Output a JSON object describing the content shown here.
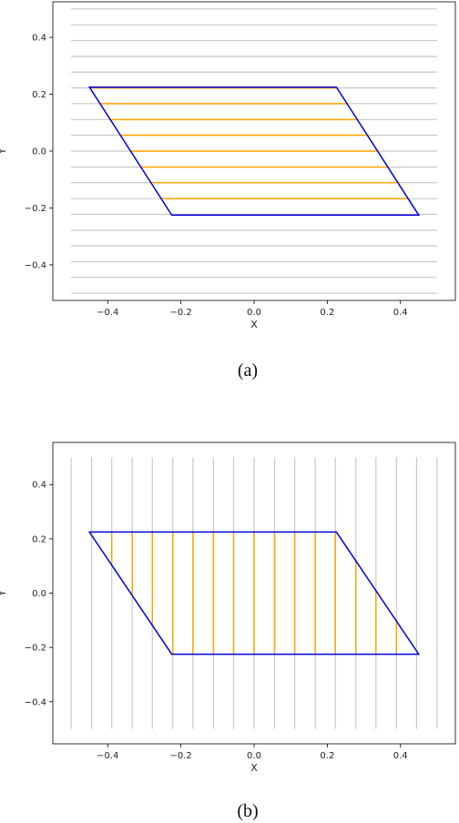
{
  "chart_data": [
    {
      "type": "line",
      "panel": "a",
      "caption": "(a)",
      "xlabel": "X",
      "ylabel": "Y",
      "xlim": [
        -0.55,
        0.55
      ],
      "ylim": [
        -0.525,
        0.525
      ],
      "xticks": [
        -0.4,
        -0.2,
        0.0,
        0.2,
        0.4
      ],
      "yticks": [
        -0.4,
        -0.2,
        0.0,
        0.2,
        0.4
      ],
      "xtick_labels": [
        "−0.4",
        "−0.2",
        "0.0",
        "0.2",
        "0.4"
      ],
      "ytick_labels": [
        "−0.4",
        "−0.2",
        "0.0",
        "0.2",
        "0.4"
      ],
      "grid": false,
      "colors": {
        "background_lines": "#c8c8c8",
        "clipped_lines": "#ffa500",
        "shape": "#0000dd"
      },
      "series": [
        {
          "role": "background_lines",
          "orientation": "horizontal",
          "span": [
            -0.5,
            0.5
          ],
          "positions": [
            -0.5,
            -0.444,
            -0.389,
            -0.333,
            -0.278,
            -0.222,
            -0.167,
            -0.111,
            -0.056,
            0.0,
            0.056,
            0.111,
            0.167,
            0.222,
            0.278,
            0.333,
            0.389,
            0.444,
            0.5
          ]
        },
        {
          "role": "clipped_lines",
          "orientation": "horizontal",
          "positions": [
            -0.167,
            -0.111,
            -0.056,
            0.0,
            0.056,
            0.111,
            0.167,
            0.222
          ]
        },
        {
          "role": "shape",
          "closed": true,
          "x": [
            -0.45,
            0.225,
            0.45,
            -0.225
          ],
          "y": [
            0.225,
            0.225,
            -0.225,
            -0.225
          ]
        }
      ]
    },
    {
      "type": "line",
      "panel": "b",
      "caption": "(b)",
      "xlabel": "X",
      "ylabel": "Y",
      "xlim": [
        -0.55,
        0.55
      ],
      "ylim": [
        -0.555,
        0.555
      ],
      "xticks": [
        -0.4,
        -0.2,
        0.0,
        0.2,
        0.4
      ],
      "yticks": [
        -0.4,
        -0.2,
        0.0,
        0.2,
        0.4
      ],
      "xtick_labels": [
        "−0.4",
        "−0.2",
        "0.0",
        "0.2",
        "0.4"
      ],
      "ytick_labels": [
        "−0.4",
        "−0.2",
        "0.0",
        "0.2",
        "0.4"
      ],
      "grid": false,
      "colors": {
        "background_lines": "#c8c8c8",
        "clipped_lines": "#ffa500",
        "shape": "#0000dd"
      },
      "series": [
        {
          "role": "background_lines",
          "orientation": "vertical",
          "span": [
            -0.5,
            0.5
          ],
          "positions": [
            -0.5,
            -0.444,
            -0.389,
            -0.333,
            -0.278,
            -0.222,
            -0.167,
            -0.111,
            -0.056,
            0.0,
            0.056,
            0.111,
            0.167,
            0.222,
            0.278,
            0.333,
            0.389,
            0.444,
            0.5
          ]
        },
        {
          "role": "clipped_lines",
          "orientation": "vertical",
          "positions": [
            -0.389,
            -0.333,
            -0.278,
            -0.222,
            -0.167,
            -0.111,
            -0.056,
            0.0,
            0.056,
            0.111,
            0.167,
            0.222,
            0.278,
            0.333,
            0.389
          ]
        },
        {
          "role": "shape",
          "closed": true,
          "x": [
            -0.45,
            0.225,
            0.45,
            -0.225
          ],
          "y": [
            0.225,
            0.225,
            -0.225,
            -0.225
          ]
        }
      ]
    }
  ]
}
